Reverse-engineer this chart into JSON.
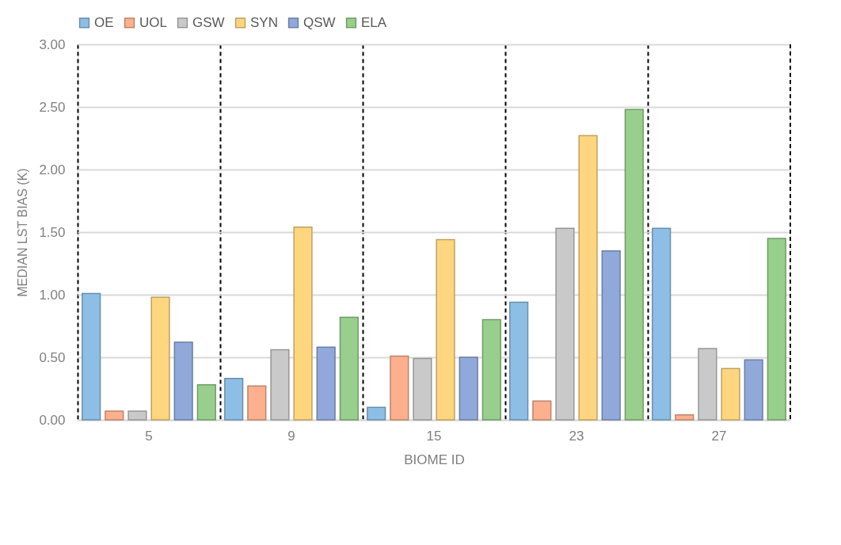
{
  "chart_data": {
    "type": "bar",
    "xlabel": "BIOME ID",
    "ylabel": "MEDIAN  LST  BIAS (K)",
    "categories": [
      "5",
      "9",
      "15",
      "23",
      "27"
    ],
    "series": [
      {
        "name": "OE",
        "color": "#8dbfe6",
        "values": [
          1.01,
          0.33,
          0.1,
          0.94,
          1.53
        ]
      },
      {
        "name": "UOL",
        "color": "#fcb08e",
        "values": [
          0.07,
          0.27,
          0.51,
          0.15,
          0.04
        ]
      },
      {
        "name": "GSW",
        "color": "#c9c9c9",
        "values": [
          0.07,
          0.56,
          0.49,
          1.53,
          0.57
        ]
      },
      {
        "name": "SYN",
        "color": "#fed67f",
        "values": [
          0.98,
          1.54,
          1.44,
          2.27,
          0.41
        ]
      },
      {
        "name": "QSW",
        "color": "#91a8da",
        "values": [
          0.62,
          0.58,
          0.5,
          1.35,
          0.48
        ]
      },
      {
        "name": "ELA",
        "color": "#98cf8c",
        "values": [
          0.28,
          0.82,
          0.8,
          2.48,
          1.45
        ]
      }
    ],
    "ylim": [
      0,
      3
    ],
    "yticks": [
      {
        "value": 0,
        "label": "0.00"
      },
      {
        "value": 0.5,
        "label": "0.50"
      },
      {
        "value": 1,
        "label": "1.00"
      },
      {
        "value": 1.5,
        "label": "1.50"
      },
      {
        "value": 2,
        "label": "2.00"
      },
      {
        "value": 2.5,
        "label": "2.50"
      },
      {
        "value": 3,
        "label": "3.00"
      }
    ],
    "grid": true,
    "legend": "top"
  }
}
